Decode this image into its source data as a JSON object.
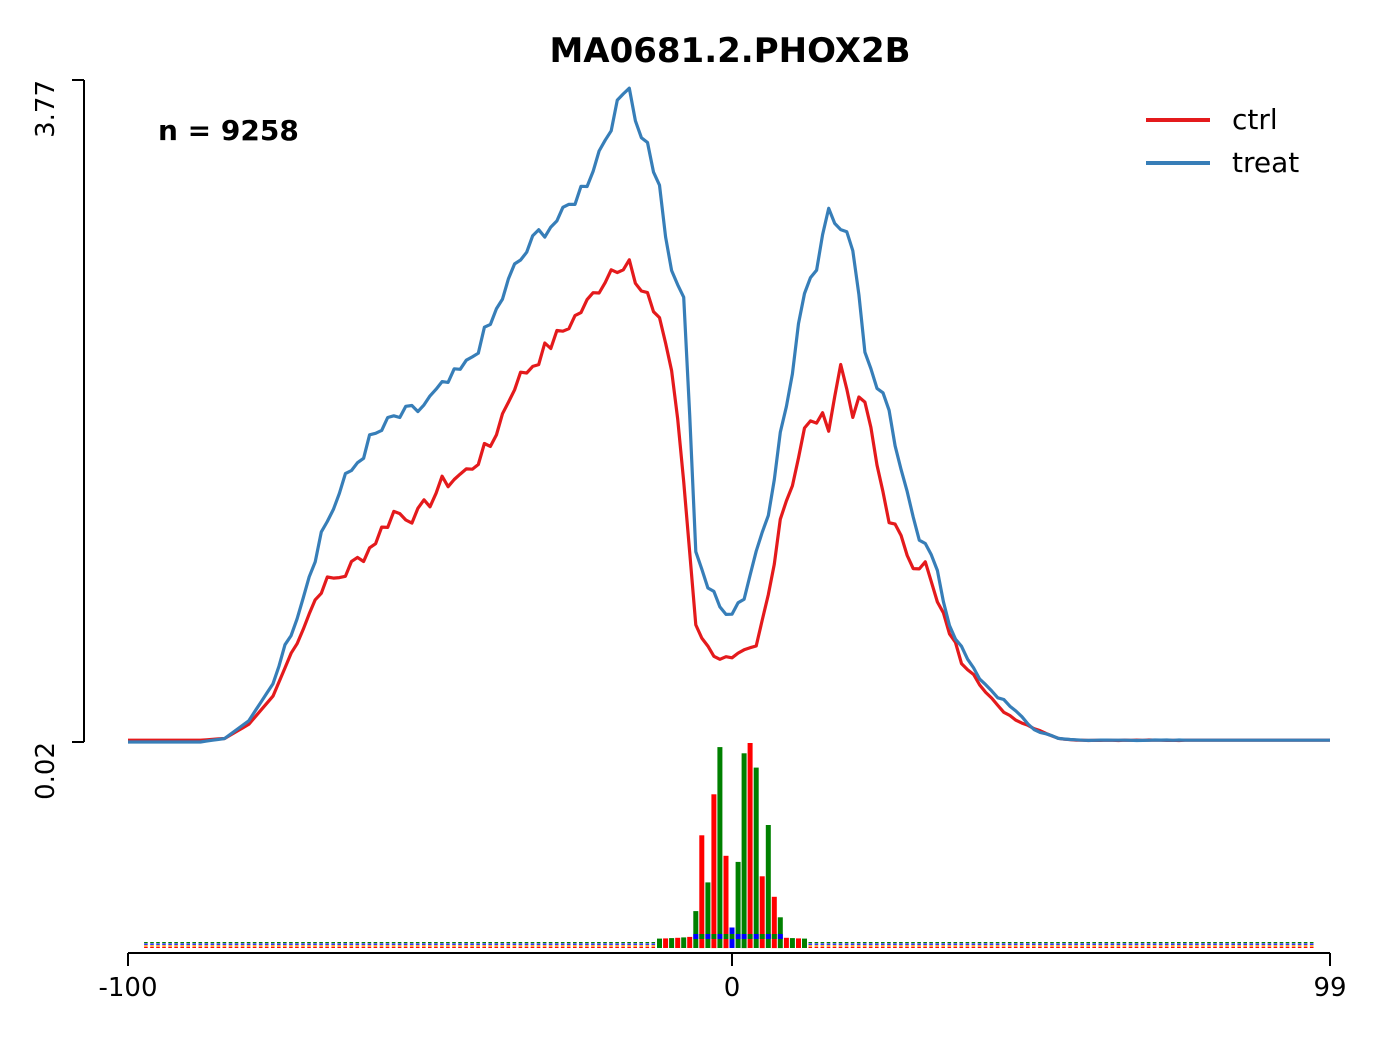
{
  "chart_data": {
    "type": "line",
    "title": "MA0681.2.PHOX2B",
    "annotation": "n = 9258",
    "xlim": [
      -100,
      99
    ],
    "ylim": [
      0.02,
      3.77
    ],
    "x_ticks": [
      "-100",
      "0",
      "99"
    ],
    "y_ticks": [
      "0.02",
      "3.77"
    ],
    "legend_position": "top-right",
    "colors": {
      "ctrl": "#e41a1c",
      "treat": "#377eb8",
      "logo_A": "#008000",
      "logo_C": "#0000ff",
      "logo_G": "#ffa500",
      "logo_T": "#ff0000"
    },
    "anchors": {
      "x": [
        -100,
        -88,
        -84,
        -80,
        -76,
        -72,
        -68,
        -64,
        -60,
        -56,
        -52,
        -48,
        -44,
        -40,
        -36,
        -32,
        -28,
        -24,
        -20,
        -17,
        -16,
        -14,
        -12,
        -10,
        -8,
        -6,
        -4,
        -2,
        0,
        2,
        4,
        6,
        8,
        10,
        12,
        14,
        16,
        18,
        20,
        22,
        24,
        26,
        28,
        30,
        32,
        34,
        36,
        38,
        40,
        42,
        44,
        46,
        48,
        50,
        54,
        58,
        62,
        66,
        70,
        80,
        99
      ],
      "ctrl": [
        0.03,
        0.03,
        0.04,
        0.12,
        0.28,
        0.6,
        0.9,
        0.98,
        1.12,
        1.32,
        1.3,
        1.48,
        1.55,
        1.7,
        2.05,
        2.2,
        2.35,
        2.5,
        2.7,
        2.76,
        2.6,
        2.52,
        2.43,
        2.13,
        1.5,
        0.7,
        0.55,
        0.5,
        0.48,
        0.52,
        0.55,
        0.85,
        1.3,
        1.5,
        1.78,
        1.85,
        1.83,
        2.15,
        1.9,
        1.95,
        1.58,
        1.3,
        1.15,
        1.05,
        1.02,
        0.8,
        0.65,
        0.48,
        0.42,
        0.3,
        0.22,
        0.17,
        0.13,
        0.1,
        0.04,
        0.03,
        0.03,
        0.03,
        0.03,
        0.03,
        0.03
      ],
      "treat": [
        0.02,
        0.02,
        0.04,
        0.14,
        0.35,
        0.75,
        1.2,
        1.5,
        1.72,
        1.85,
        1.9,
        2.02,
        2.15,
        2.38,
        2.7,
        2.9,
        3.0,
        3.2,
        3.53,
        3.77,
        3.55,
        3.4,
        3.15,
        2.65,
        2.55,
        1.13,
        0.9,
        0.78,
        0.77,
        0.85,
        1.1,
        1.35,
        1.75,
        2.1,
        2.6,
        2.72,
        3.09,
        2.9,
        2.85,
        2.25,
        2.05,
        1.9,
        1.55,
        1.25,
        1.1,
        1.0,
        0.7,
        0.55,
        0.42,
        0.35,
        0.28,
        0.22,
        0.16,
        0.09,
        0.04,
        0.03,
        0.03,
        0.03,
        0.03,
        0.03,
        0.03
      ]
    },
    "series": [
      {
        "name": "ctrl",
        "color": "#e41a1c"
      },
      {
        "name": "treat",
        "color": "#377eb8"
      }
    ],
    "motif_logo": {
      "letters": [
        "A",
        "C",
        "G",
        "T"
      ],
      "core_x": [
        -6,
        -5,
        -4,
        -3,
        -2,
        -1,
        0,
        1,
        2,
        3,
        4,
        5,
        6,
        7,
        8
      ],
      "core_letter": [
        "A",
        "T",
        "A",
        "T",
        "A",
        "T",
        "C",
        "A",
        "A",
        "T",
        "A",
        "T",
        "A",
        "T",
        "A"
      ],
      "core_height": [
        0.18,
        0.55,
        0.32,
        0.75,
        0.98,
        0.45,
        0.1,
        0.42,
        0.95,
        1.0,
        0.88,
        0.35,
        0.6,
        0.25,
        0.15
      ]
    }
  }
}
